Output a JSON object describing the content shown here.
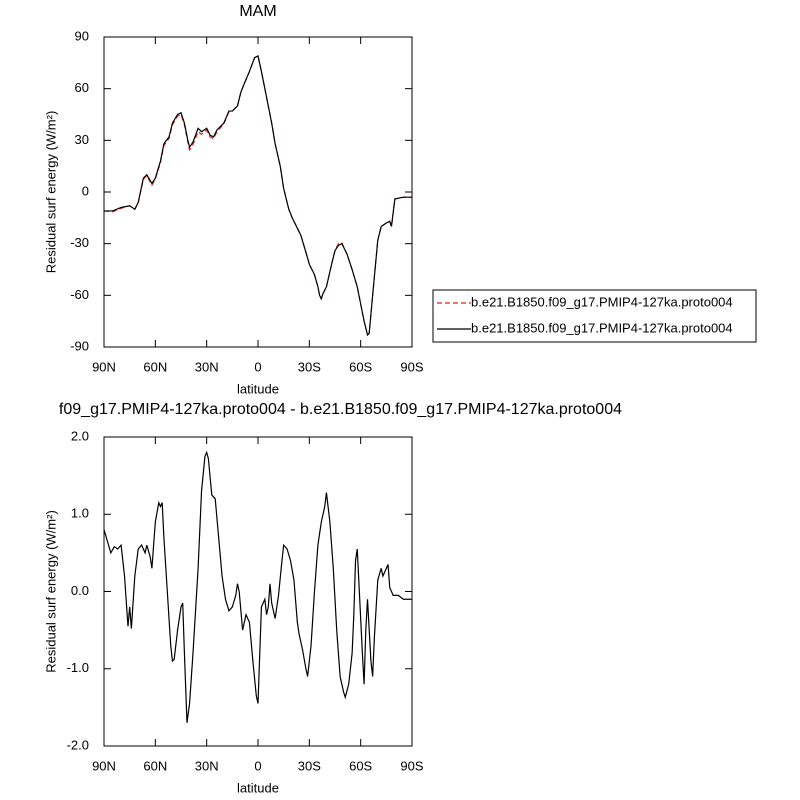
{
  "chart_data": [
    {
      "type": "line",
      "title": "MAM",
      "xlabel": "latitude",
      "ylabel": "Residual surf energy (W/m²)",
      "x": [
        90,
        85,
        80,
        75,
        72,
        70,
        67,
        65,
        62,
        60,
        57,
        55,
        52,
        50,
        47,
        45,
        43,
        41,
        40,
        38,
        35,
        33,
        30,
        28,
        26,
        24,
        20,
        17,
        15,
        12,
        10,
        8,
        5,
        2,
        0,
        -2,
        -5,
        -8,
        -10,
        -13,
        -15,
        -18,
        -20,
        -25,
        -28,
        -30,
        -33,
        -35,
        -36,
        -37,
        -38,
        -40,
        -43,
        -45,
        -47,
        -49,
        -52,
        -55,
        -58,
        -60,
        -62,
        -64,
        -65,
        -67,
        -70,
        -72,
        -75,
        -77,
        -78,
        -80,
        -85,
        -90
      ],
      "series": [
        {
          "name": "b.e21.B1850.f09_g17.PMIP4-127ka.proto004",
          "color": "#e0201b",
          "dashed": true,
          "values": [
            -11,
            -11.5,
            -9.5,
            -8,
            -10,
            -6.5,
            7.5,
            9.5,
            4,
            7.5,
            17,
            27,
            31,
            39,
            44,
            45,
            39,
            29,
            24.5,
            27.5,
            35,
            33.5,
            36,
            32,
            31,
            35,
            39.5,
            46.5,
            47,
            50,
            58,
            63,
            70,
            78,
            79,
            70,
            55,
            40,
            28,
            15,
            2,
            -10,
            -15,
            -25,
            -35,
            -42,
            -48,
            -55,
            -60,
            -62,
            -59,
            -55,
            -42,
            -34,
            -30,
            -29.5,
            -36,
            -45,
            -55,
            -65,
            -75,
            -83,
            -82,
            -60,
            -28,
            -20,
            -18,
            -17,
            -20,
            -4,
            -3,
            -3
          ]
        },
        {
          "name": "b.e21.B1850.f09_g17.PMIP4-127ka.proto004",
          "color": "#000000",
          "dashed": false,
          "values": [
            -11,
            -11,
            -9,
            -8,
            -10,
            -6,
            8,
            10,
            5,
            8,
            18,
            28,
            32,
            40,
            45,
            46,
            40,
            30,
            26,
            29,
            37,
            35,
            37,
            33,
            32,
            36,
            40,
            47,
            47,
            50,
            58,
            63,
            70,
            78,
            79,
            70,
            55,
            40,
            28,
            15,
            2,
            -10,
            -15,
            -25,
            -35,
            -42,
            -48,
            -55,
            -60,
            -62,
            -59,
            -55,
            -42,
            -34,
            -31,
            -30,
            -36,
            -45,
            -55,
            -65,
            -75,
            -83,
            -82,
            -60,
            -28,
            -20,
            -18,
            -17,
            -20,
            -4,
            -3,
            -3
          ]
        }
      ],
      "xlim": [
        90,
        -90
      ],
      "xticks": [
        {
          "value": 90,
          "label": "90N"
        },
        {
          "value": 60,
          "label": "60N"
        },
        {
          "value": 30,
          "label": "30N"
        },
        0,
        {
          "value": -30,
          "label": "30S"
        },
        {
          "value": -60,
          "label": "60S"
        },
        {
          "value": -90,
          "label": "90S"
        }
      ],
      "ylim": [
        -90,
        90
      ],
      "yticks": [
        -90,
        -60,
        -30,
        0,
        30,
        60,
        90
      ],
      "legend": "right"
    },
    {
      "type": "line",
      "title": "f09_g17.PMIP4-127ka.proto004 - b.e21.B1850.f09_g17.PMIP4-127ka.proto004",
      "xlabel": "latitude",
      "ylabel": "Residual surf energy (W/m²)",
      "x": [
        90,
        88,
        86,
        84,
        82,
        80,
        78,
        76,
        75,
        74,
        72,
        70,
        68,
        66,
        65,
        63,
        62,
        60,
        58,
        57,
        56,
        55,
        53,
        51,
        50,
        49,
        47,
        45,
        44,
        43,
        41.5,
        40,
        38,
        35,
        33,
        31,
        30,
        29,
        27,
        25,
        23,
        21,
        19,
        17,
        15,
        13,
        12,
        11,
        9,
        7,
        5,
        3,
        1,
        0,
        -2,
        -4,
        -5,
        -6,
        -7,
        -8,
        -10,
        -12,
        -14,
        -15,
        -17,
        -19,
        -21,
        -23,
        -24,
        -26,
        -28,
        -29,
        -31,
        -33,
        -35,
        -37,
        -39,
        -40,
        -42,
        -44,
        -46,
        -48,
        -50,
        -51,
        -53,
        -55,
        -56,
        -57,
        -58,
        -59,
        -61,
        -62,
        -63,
        -64,
        -65,
        -66,
        -67,
        -68,
        -70,
        -72,
        -73,
        -75,
        -76,
        -77,
        -79,
        -82,
        -85,
        -90
      ],
      "series": [
        {
          "color": "#000000",
          "dashed": false,
          "values": [
            0.8,
            0.65,
            0.5,
            0.58,
            0.55,
            0.6,
            0.2,
            -0.45,
            -0.2,
            -0.48,
            0.2,
            0.55,
            0.6,
            0.5,
            0.6,
            0.45,
            0.3,
            0.9,
            1.15,
            1.1,
            1.15,
            0.7,
            0.0,
            -0.7,
            -0.9,
            -0.88,
            -0.5,
            -0.2,
            -0.15,
            -0.8,
            -1.7,
            -1.45,
            -0.8,
            0.3,
            1.3,
            1.75,
            1.8,
            1.72,
            1.25,
            1.2,
            0.7,
            0.2,
            -0.1,
            -0.25,
            -0.2,
            -0.05,
            0.1,
            0.0,
            -0.5,
            -0.3,
            -0.4,
            -0.9,
            -1.35,
            -1.45,
            -0.2,
            -0.1,
            -0.3,
            -0.2,
            0.1,
            -0.15,
            -0.35,
            -0.05,
            0.4,
            0.6,
            0.55,
            0.4,
            0.15,
            -0.4,
            -0.55,
            -0.75,
            -1.0,
            -1.1,
            -0.7,
            0.0,
            0.6,
            0.9,
            1.1,
            1.28,
            0.9,
            0.3,
            -0.5,
            -1.1,
            -1.3,
            -1.37,
            -1.2,
            -0.8,
            -0.3,
            0.4,
            0.55,
            0.1,
            -0.8,
            -1.2,
            -0.5,
            -0.1,
            -0.5,
            -0.9,
            -1.1,
            -0.6,
            0.15,
            0.3,
            0.2,
            0.3,
            0.35,
            0.05,
            -0.05,
            -0.05,
            -0.1,
            -0.1
          ]
        }
      ],
      "xlim": [
        90,
        -90
      ],
      "xticks": [
        {
          "value": 90,
          "label": "90N"
        },
        {
          "value": 60,
          "label": "60N"
        },
        {
          "value": 30,
          "label": "30N"
        },
        0,
        {
          "value": -30,
          "label": "30S"
        },
        {
          "value": -60,
          "label": "60S"
        },
        {
          "value": -90,
          "label": "90S"
        }
      ],
      "ylim": [
        -2,
        2
      ],
      "yticks": [
        {
          "value": -2,
          "label": "-2.0"
        },
        {
          "value": -1,
          "label": "-1.0"
        },
        {
          "value": 0,
          "label": "0.0"
        },
        {
          "value": 1,
          "label": "1.0"
        },
        {
          "value": 2,
          "label": "2.0"
        }
      ]
    }
  ]
}
